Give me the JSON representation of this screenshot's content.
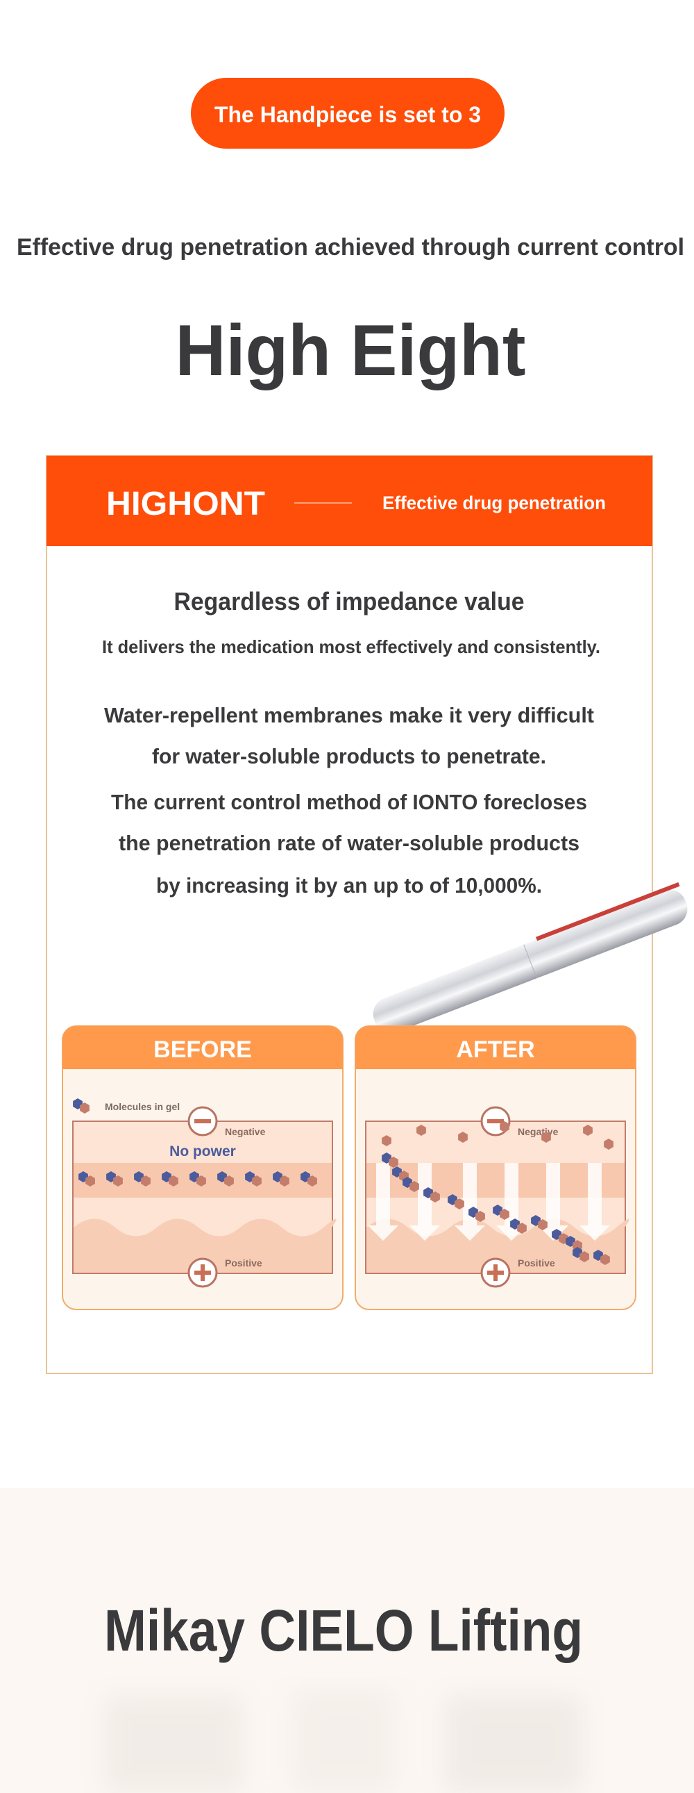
{
  "badge": "The Handpiece is set to 3",
  "subtitle": "Effective drug penetration achieved through current control",
  "title": "High Eight",
  "card": {
    "brand": "HIGHONT",
    "tagline": "Effective drug penetration",
    "heading": "Regardless of impedance value",
    "subheading": "It delivers the medication most effectively and consistently.",
    "paragraphs": [
      "Water-repellent membranes make it very difficult",
      "for water-soluble products to penetrate.",
      "The current control method of IONTO forecloses",
      "the penetration rate of water-soluble products",
      "by increasing it by an up to of 10,000%."
    ],
    "diagrams": [
      {
        "label": "BEFORE",
        "legend": "Molecules in gel",
        "negative": "Negative",
        "state": "No power",
        "positive": "Positive"
      },
      {
        "label": "AFTER",
        "negative": "Negative",
        "positive": "Positive"
      }
    ]
  },
  "section": {
    "title": "Mikay CIELO Lifting"
  }
}
